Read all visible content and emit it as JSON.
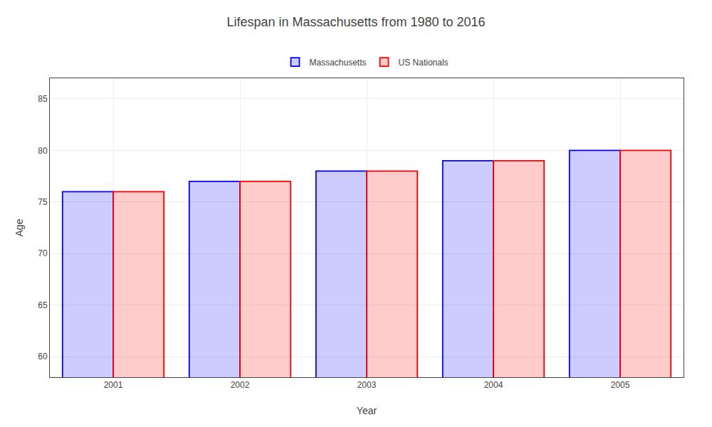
{
  "chart_data": {
    "type": "bar",
    "title": "Lifespan in Massachusetts from 1980 to 2016",
    "xlabel": "Year",
    "ylabel": "Age",
    "categories": [
      "2001",
      "2002",
      "2003",
      "2004",
      "2005"
    ],
    "series": [
      {
        "name": "Massachusetts",
        "color": "#0000ff",
        "values": [
          76,
          77,
          78,
          79,
          80
        ]
      },
      {
        "name": "US Nationals",
        "color": "#ff0000",
        "values": [
          76,
          77,
          78,
          79,
          80
        ]
      }
    ],
    "ylim": [
      58,
      87
    ],
    "yticks": [
      60,
      65,
      70,
      75,
      80,
      85
    ],
    "grid": true,
    "legend": "top"
  }
}
